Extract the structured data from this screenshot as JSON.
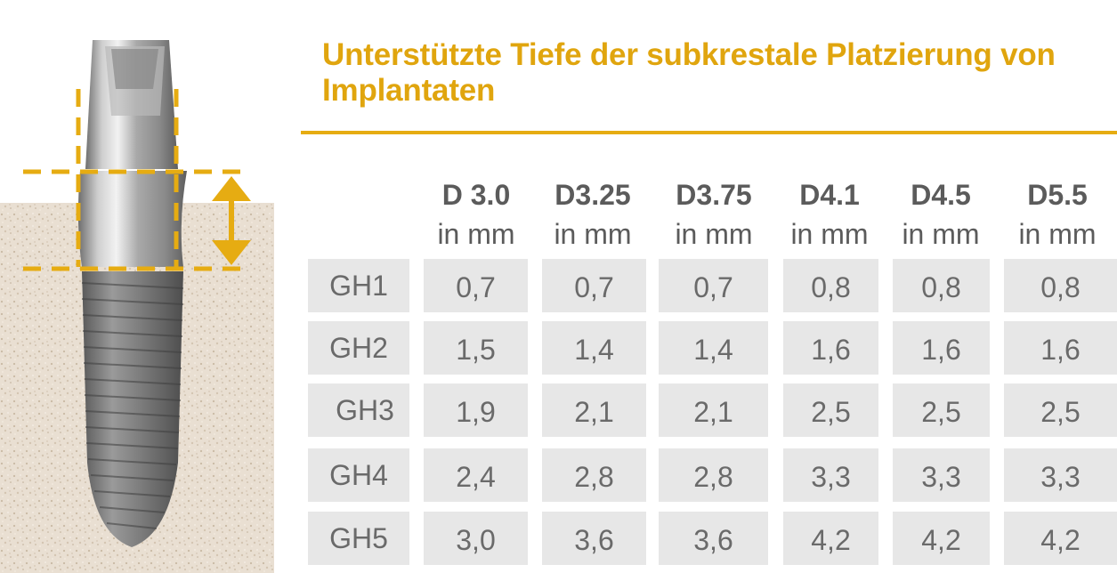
{
  "title": "Unterstützte Tiefe der subkrestale Platzierung von Implantaten",
  "table": {
    "columns": [
      {
        "diameter": "D 3.0",
        "unit": "in mm"
      },
      {
        "diameter": "D3.25",
        "unit": "in mm"
      },
      {
        "diameter": "D3.75",
        "unit": "in mm"
      },
      {
        "diameter": "D4.1",
        "unit": "in mm"
      },
      {
        "diameter": "D4.5",
        "unit": "in mm"
      },
      {
        "diameter": "D5.5",
        "unit": "in mm"
      }
    ],
    "rows": [
      {
        "label": "GH1",
        "values": [
          "0,7",
          "0,7",
          "0,7",
          "0,8",
          "0,8",
          "0,8"
        ]
      },
      {
        "label": "GH2",
        "values": [
          "1,5",
          "1,4",
          "1,4",
          "1,6",
          "1,6",
          "1,6"
        ]
      },
      {
        "label": "GH3",
        "values": [
          "1,9",
          "2,1",
          "2,1",
          "2,5",
          "2,5",
          "2,5"
        ]
      },
      {
        "label": "GH4",
        "values": [
          "2,4",
          "2,8",
          "2,8",
          "3,3",
          "3,3",
          "3,3"
        ]
      },
      {
        "label": "GH5",
        "values": [
          "3,0",
          "3,6",
          "3,6",
          "4,2",
          "4,2",
          "4,2"
        ]
      }
    ]
  },
  "colors": {
    "accent": "#e6ac12",
    "cell_background": "#e7e7e7",
    "text": "#6a6a6a"
  },
  "illustration": {
    "icons": [
      "dental-implant-icon",
      "bone-texture",
      "double-arrow-icon"
    ]
  }
}
